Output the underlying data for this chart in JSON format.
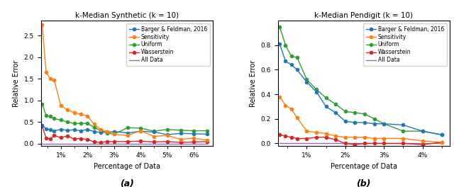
{
  "title_a": "k-Median Synthetic (k = 10)",
  "title_b": "k-Median Pendigit (k = 10)",
  "xlabel": "Percentage of Data",
  "ylabel": "Relative Error",
  "caption_a": "(a)",
  "caption_b": "(b)",
  "legend_labels": [
    "Barger & Feldman, 2016",
    "Sensitivity",
    "Uniform",
    "Wasserstein",
    "All Data"
  ],
  "colors": [
    "#1f77b4",
    "#ff7f0e",
    "#2ca02c",
    "#d62728",
    "#9467bd"
  ],
  "ax1": {
    "x_vals": [
      0.3,
      0.45,
      0.6,
      0.75,
      1.0,
      1.25,
      1.5,
      1.75,
      2.0,
      2.25,
      2.5,
      2.75,
      3.0,
      3.5,
      4.0,
      4.5,
      5.0,
      5.5,
      6.0,
      6.5
    ],
    "ylim": [
      -0.05,
      2.85
    ],
    "yticks": [
      0.0,
      0.5,
      1.0,
      1.5,
      2.0,
      2.5
    ],
    "xlim": [
      0.25,
      6.7
    ],
    "xticks": [
      1.0,
      2.0,
      3.0,
      4.0,
      5.0,
      6.0
    ],
    "xticklabels": [
      "1%",
      "2%",
      "3%",
      "4%",
      "5%",
      "6%"
    ],
    "barger": [
      0.42,
      0.35,
      0.32,
      0.3,
      0.33,
      0.31,
      0.32,
      0.3,
      0.33,
      0.28,
      0.26,
      0.27,
      0.28,
      0.25,
      0.29,
      0.27,
      0.21,
      0.24,
      0.23,
      0.22
    ],
    "sensitivity": [
      2.75,
      1.65,
      1.5,
      1.48,
      0.88,
      0.78,
      0.72,
      0.68,
      0.64,
      0.45,
      0.33,
      0.28,
      0.22,
      0.19,
      0.3,
      0.17,
      0.19,
      0.1,
      0.13,
      0.08
    ],
    "uniform": [
      0.92,
      0.65,
      0.63,
      0.58,
      0.55,
      0.5,
      0.47,
      0.47,
      0.47,
      0.38,
      0.3,
      0.25,
      0.22,
      0.37,
      0.36,
      0.29,
      0.33,
      0.31,
      0.3,
      0.3
    ],
    "wasserstein": [
      0.4,
      0.13,
      0.11,
      0.19,
      0.14,
      0.18,
      0.11,
      0.12,
      0.1,
      0.04,
      0.03,
      0.05,
      0.05,
      0.05,
      0.06,
      0.04,
      0.05,
      0.03,
      0.04,
      0.05
    ],
    "alldata": [
      0.0,
      0.0,
      0.0,
      0.0,
      0.0,
      0.0,
      0.0,
      0.0,
      0.0,
      0.0,
      0.0,
      0.0,
      0.0,
      0.0,
      0.0,
      0.0,
      0.0,
      0.0,
      0.0,
      0.0
    ]
  },
  "ax2": {
    "x_vals": [
      0.3,
      0.45,
      0.6,
      0.75,
      1.0,
      1.25,
      1.5,
      1.75,
      2.0,
      2.25,
      2.5,
      2.75,
      3.0,
      3.5,
      4.0,
      4.5
    ],
    "ylim": [
      -0.02,
      1.0
    ],
    "yticks": [
      0.0,
      0.2,
      0.4,
      0.6,
      0.8
    ],
    "xlim": [
      0.25,
      4.7
    ],
    "xticks": [
      1.0,
      2.0,
      3.0,
      4.0
    ],
    "xticklabels": [
      "1%",
      "2%",
      "3%",
      "4%"
    ],
    "barger": [
      0.81,
      0.67,
      0.64,
      0.6,
      0.5,
      0.42,
      0.3,
      0.25,
      0.18,
      0.17,
      0.17,
      0.16,
      0.16,
      0.15,
      0.1,
      0.07
    ],
    "sensitivity": [
      0.38,
      0.31,
      0.28,
      0.21,
      0.1,
      0.09,
      0.08,
      0.06,
      0.05,
      0.05,
      0.05,
      0.04,
      0.04,
      0.04,
      0.02,
      0.01
    ],
    "uniform": [
      0.95,
      0.8,
      0.71,
      0.7,
      0.52,
      0.44,
      0.37,
      0.32,
      0.26,
      0.25,
      0.24,
      0.2,
      0.16,
      0.1,
      0.1,
      0.07
    ],
    "wasserstein": [
      0.07,
      0.06,
      0.05,
      0.04,
      0.04,
      0.05,
      0.05,
      0.03,
      0.0,
      -0.01,
      0.0,
      0.0,
      0.0,
      0.0,
      -0.01,
      0.01
    ],
    "alldata": [
      0.0,
      0.0,
      0.0,
      0.0,
      0.0,
      0.0,
      0.0,
      0.0,
      0.0,
      0.0,
      0.0,
      0.0,
      0.0,
      0.0,
      0.0,
      0.0
    ]
  }
}
